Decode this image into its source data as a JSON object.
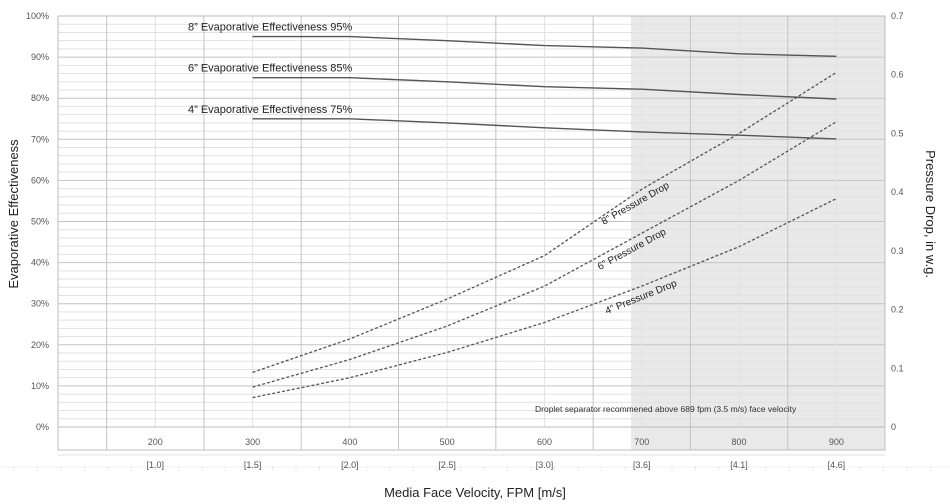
{
  "chart_data": {
    "type": "line",
    "xlabel": "Media Face Velocity, FPM [m/s]",
    "ylabel_left": "Evaporative Effectiveness",
    "ylabel_right": "Pressure Drop, in w.g.",
    "xlim": [
      100,
      950
    ],
    "ylim_left": [
      0,
      100
    ],
    "ylim_right": [
      0,
      0.7
    ],
    "grid": true,
    "x_ticks": [
      {
        "fpm": "200",
        "ms": "[1.0]"
      },
      {
        "fpm": "300",
        "ms": "[1.5]"
      },
      {
        "fpm": "400",
        "ms": "[2.0]"
      },
      {
        "fpm": "500",
        "ms": "[2.5]"
      },
      {
        "fpm": "600",
        "ms": "[3.0]"
      },
      {
        "fpm": "700",
        "ms": "[3.6]"
      },
      {
        "fpm": "800",
        "ms": "[4.1]"
      },
      {
        "fpm": "900",
        "ms": "[4.6]"
      }
    ],
    "y_left_ticks": [
      "0%",
      "10%",
      "20%",
      "30%",
      "40%",
      "50%",
      "60%",
      "70%",
      "80%",
      "90%",
      "100%"
    ],
    "y_right_ticks": [
      "0",
      "0.1",
      "0.2",
      "0.3",
      "0.4",
      "0.5",
      "0.6",
      "0.7"
    ],
    "shaded_region": {
      "x_from": 689,
      "x_to": 950,
      "color": "#e9e9e9"
    },
    "annotation": "Droplet separator recommened above 689 fpm (3.5 m/s) face velocity",
    "series": [
      {
        "name": "8” Evaporative Effectiveness  95%",
        "axis": "left",
        "style": "solid",
        "color": "#555555",
        "x": [
          300,
          400,
          500,
          600,
          700,
          800,
          900
        ],
        "values": [
          95,
          95,
          94,
          92.8,
          92.2,
          90.8,
          90.2
        ]
      },
      {
        "name": "6” Evaporative Effectiveness  85%",
        "axis": "left",
        "style": "solid",
        "color": "#555555",
        "x": [
          300,
          400,
          500,
          600,
          700,
          800,
          900
        ],
        "values": [
          85,
          85,
          84,
          82.8,
          82.2,
          80.9,
          79.8
        ]
      },
      {
        "name": "4” Evaporative Effectiveness  75%",
        "axis": "left",
        "style": "solid",
        "color": "#555555",
        "x": [
          300,
          400,
          500,
          600,
          700,
          800,
          900
        ],
        "values": [
          75,
          75,
          74,
          72.8,
          71.8,
          71,
          70.1
        ]
      },
      {
        "name": "8” Pressure Drop",
        "axis": "right",
        "style": "dashed",
        "color": "#555555",
        "x": [
          300,
          400,
          500,
          600,
          700,
          800,
          900
        ],
        "values": [
          0.093,
          0.15,
          0.218,
          0.292,
          0.405,
          0.5,
          0.604
        ]
      },
      {
        "name": "6” Pressure Drop",
        "axis": "right",
        "style": "dashed",
        "color": "#555555",
        "x": [
          300,
          400,
          500,
          600,
          700,
          800,
          900
        ],
        "values": [
          0.068,
          0.115,
          0.172,
          0.24,
          0.33,
          0.42,
          0.52
        ]
      },
      {
        "name": "4” Pressure Drop",
        "axis": "right",
        "style": "dashed",
        "color": "#555555",
        "x": [
          300,
          400,
          500,
          600,
          700,
          800,
          900
        ],
        "values": [
          0.05,
          0.084,
          0.127,
          0.178,
          0.24,
          0.307,
          0.389
        ]
      }
    ]
  }
}
